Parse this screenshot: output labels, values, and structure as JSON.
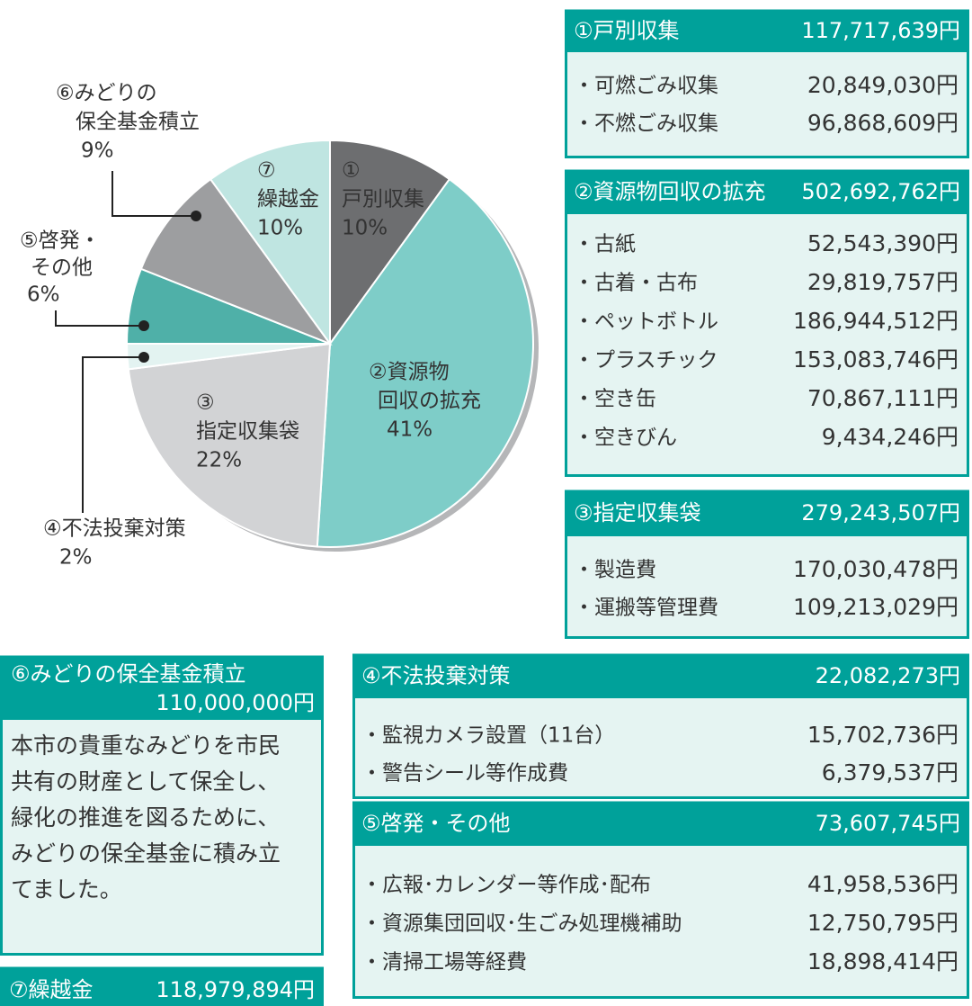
{
  "chart_data": {
    "type": "pie",
    "categories": [
      [
        "①",
        "戸別収集"
      ],
      [
        "②資源物",
        "回収の拡充"
      ],
      [
        "③",
        "指定収集袋"
      ],
      [
        "④不法投棄対策"
      ],
      [
        "⑤啓発・",
        "その他"
      ],
      [
        "⑥みどりの",
        "保全基金積立"
      ],
      [
        "⑦",
        "繰越金"
      ]
    ],
    "values": [
      10,
      41,
      22,
      2,
      6,
      9,
      10
    ],
    "value_labels": [
      "10%",
      "41%",
      "22%",
      "2%",
      "6%",
      "9%",
      "10%"
    ],
    "colors": [
      "#6d6e70",
      "#7ecdc8",
      "#d2d3d5",
      "#e3f3f1",
      "#4fb0a8",
      "#9d9ea0",
      "#bfe5e1"
    ]
  },
  "boxes": [
    {
      "title": "①戸別収集",
      "amount": "117,717,639円",
      "items": [
        {
          "name": "・可燃ごみ収集",
          "amount": "20,849,030円"
        },
        {
          "name": "・不燃ごみ収集",
          "amount": "96,868,609円"
        }
      ]
    },
    {
      "title": "②資源物回収の拡充",
      "amount": "502,692,762円",
      "items": [
        {
          "name": "・古紙",
          "amount": "52,543,390円"
        },
        {
          "name": "・古着・古布",
          "amount": "29,819,757円"
        },
        {
          "name": "・ペットボトル",
          "amount": "186,944,512円"
        },
        {
          "name": "・プラスチック",
          "amount": "153,083,746円"
        },
        {
          "name": "・空き缶",
          "amount": "70,867,111円"
        },
        {
          "name": "・空きびん",
          "amount": "9,434,246円"
        }
      ]
    },
    {
      "title": "③指定収集袋",
      "amount": "279,243,507円",
      "items": [
        {
          "name": "・製造費",
          "amount": "170,030,478円"
        },
        {
          "name": "・運搬等管理費",
          "amount": "109,213,029円"
        }
      ]
    },
    {
      "title": "④不法投棄対策",
      "amount": "22,082,273円",
      "items": [
        {
          "name": "・監視カメラ設置（11台）",
          "amount": "15,702,736円"
        },
        {
          "name": "・警告シール等作成費",
          "amount": "6,379,537円"
        }
      ]
    },
    {
      "title": "⑤啓発・その他",
      "amount": "73,607,745円",
      "items": [
        {
          "name": "・広報･カレンダー等作成･配布",
          "amount": "41,958,536円"
        },
        {
          "name": "・資源集団回収･生ごみ処理機補助",
          "amount": "12,750,795円"
        },
        {
          "name": "・清掃工場等経費",
          "amount": "18,898,414円"
        }
      ]
    },
    {
      "title": "⑥みどりの保全基金積立",
      "amount": "110,000,000円",
      "text": [
        "本市の貴重なみどりを市民",
        "共有の財産として保全し、",
        "緑化の推進を図るために、",
        "みどりの保全基金に積み立",
        "てました。"
      ]
    },
    {
      "title": "⑦繰越金",
      "amount": "118,979,894円"
    }
  ]
}
